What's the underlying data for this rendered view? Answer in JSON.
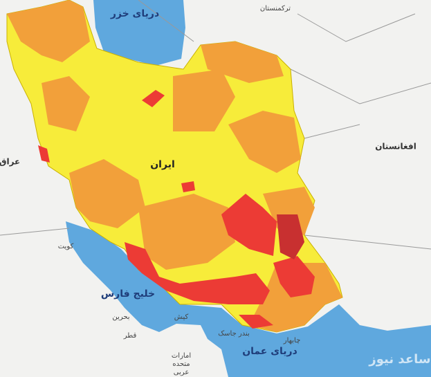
{
  "labels": [
    "دریای خزر",
    "ترکمنستان",
    "افغانستان",
    "عراق",
    "کویت",
    "خلیج فارس",
    "بحرین",
    "قطر",
    "امارات",
    "متحده",
    "عربی",
    "دریای عمان",
    "ایران",
    "کیش",
    "بندر جاسک",
    "چابهار",
    "ساعد نیوز"
  ]
}
